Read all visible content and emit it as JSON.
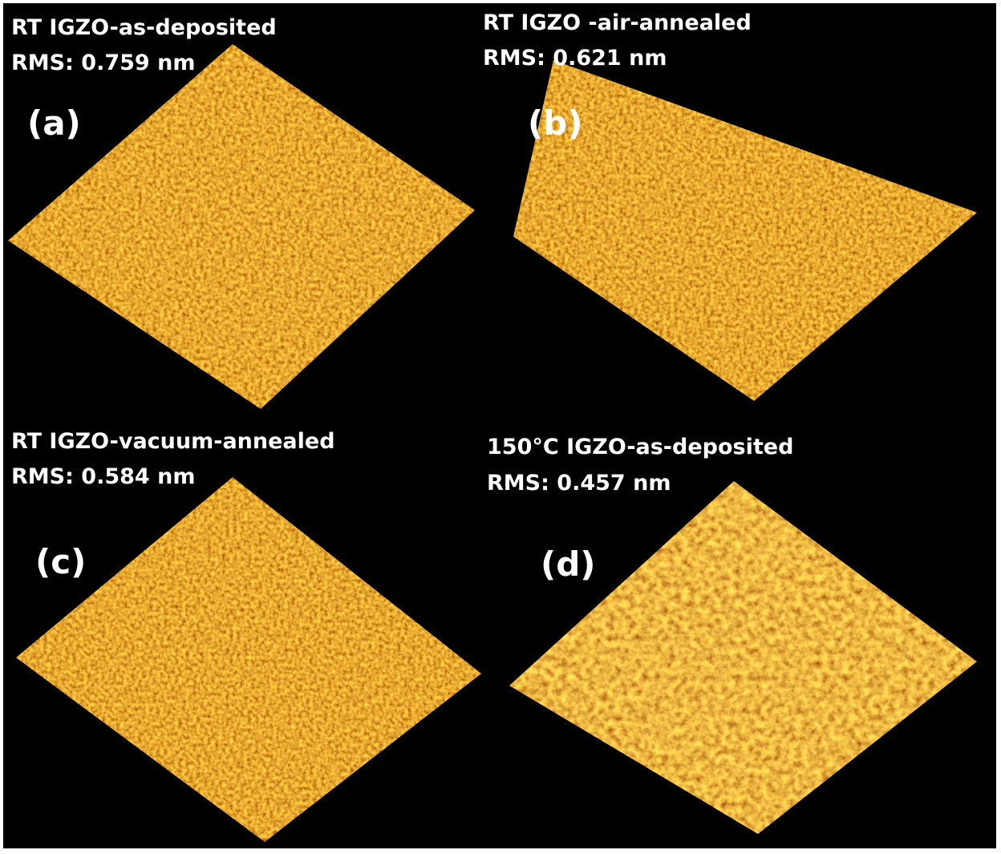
{
  "panels": [
    {
      "title": "RT IGZO-as-deposited",
      "rms": "RMS: 0.759 nm",
      "label": "(a)"
    },
    {
      "title": "RT IGZO -air-annealed",
      "rms": "RMS: 0.621 nm",
      "label": "(b)"
    },
    {
      "title": "RT IGZO-vacuum-annealed",
      "rms": "RMS: 0.584 nm",
      "label": "(c)"
    },
    {
      "title": "150°C IGZO-as-deposited",
      "rms": "RMS: 0.457 nm",
      "label": "(d)"
    }
  ]
}
